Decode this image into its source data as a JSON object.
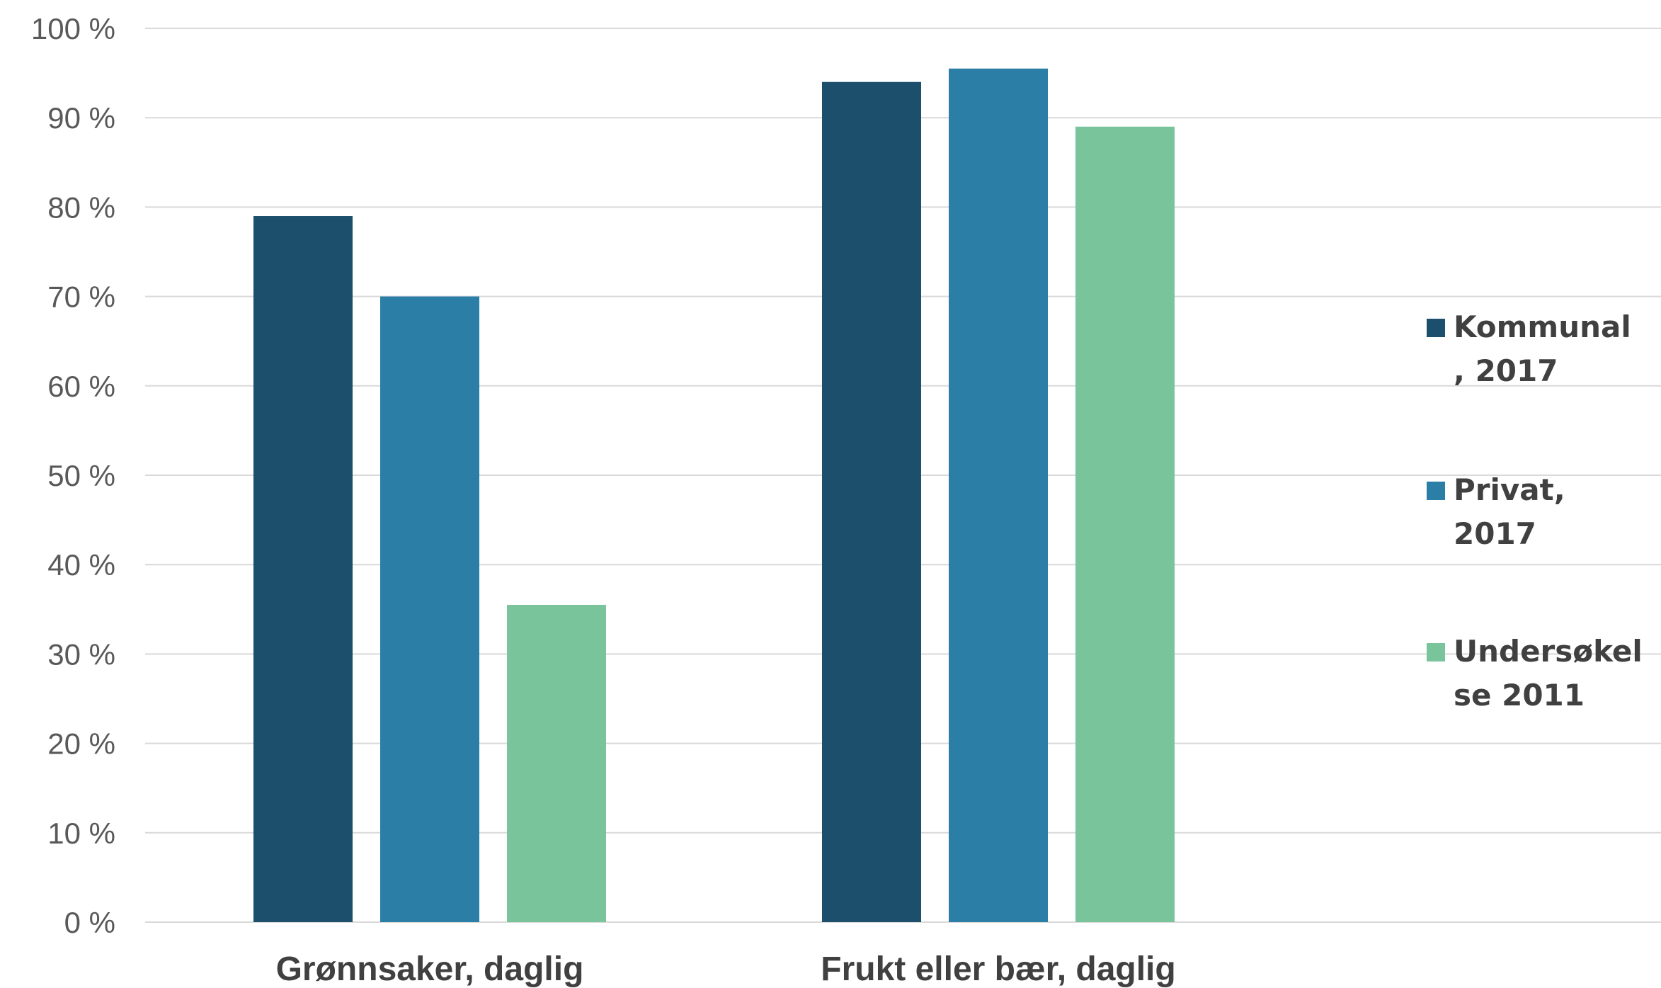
{
  "chart_data": {
    "type": "bar",
    "title": "",
    "xlabel": "",
    "ylabel": "",
    "categories": [
      "Grønnsaker, daglig",
      "Frukt eller bær, daglig"
    ],
    "series": [
      {
        "name": "Kommunal, 2017",
        "legend_lines": [
          "Kommunal",
          ", 2017"
        ],
        "color": "#1b4f6b",
        "values": [
          79,
          94
        ]
      },
      {
        "name": "Privat, 2017",
        "legend_lines": [
          "Privat,",
          "2017"
        ],
        "color": "#2b7ea6",
        "values": [
          70,
          95.5
        ]
      },
      {
        "name": "Undersøkelse 2011",
        "legend_lines": [
          "Undersøkel",
          "se 2011"
        ],
        "color": "#79c49a",
        "values": [
          35.5,
          89
        ]
      }
    ],
    "yticks": [
      "0 %",
      "10 %",
      "20 %",
      "30 %",
      "40 %",
      "50 %",
      "60 %",
      "70 %",
      "80 %",
      "90 %",
      "100 %"
    ],
    "ylim": [
      0,
      100
    ],
    "grid": true,
    "legend_position": "right"
  }
}
